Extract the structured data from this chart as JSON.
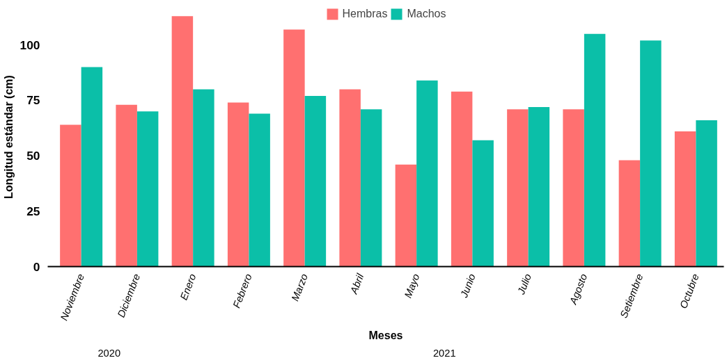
{
  "chart_data": {
    "type": "bar",
    "xlabel": "Meses",
    "ylabel": "Longitud estándar (cm)",
    "categories": [
      "Noviembre",
      "Diciembre",
      "Enero",
      "Febrero",
      "Marzo",
      "Abril",
      "Mayo",
      "Junio",
      "Julio",
      "Agosto",
      "Setiembre",
      "Octubre"
    ],
    "series": [
      {
        "name": "Hembras",
        "color": "#ff7070",
        "values": [
          64,
          73,
          113,
          74,
          107,
          80,
          46,
          79,
          71,
          71,
          48,
          61
        ]
      },
      {
        "name": "Machos",
        "color": "#0bbfa8",
        "values": [
          90,
          70,
          80,
          69,
          77,
          71,
          84,
          57,
          72,
          105,
          102,
          66
        ]
      }
    ],
    "ylim": [
      0,
      117
    ],
    "yticks": [
      0,
      25,
      50,
      75,
      100
    ],
    "grid": false,
    "legend": "top",
    "annotations": [
      "2020",
      "2021"
    ]
  }
}
